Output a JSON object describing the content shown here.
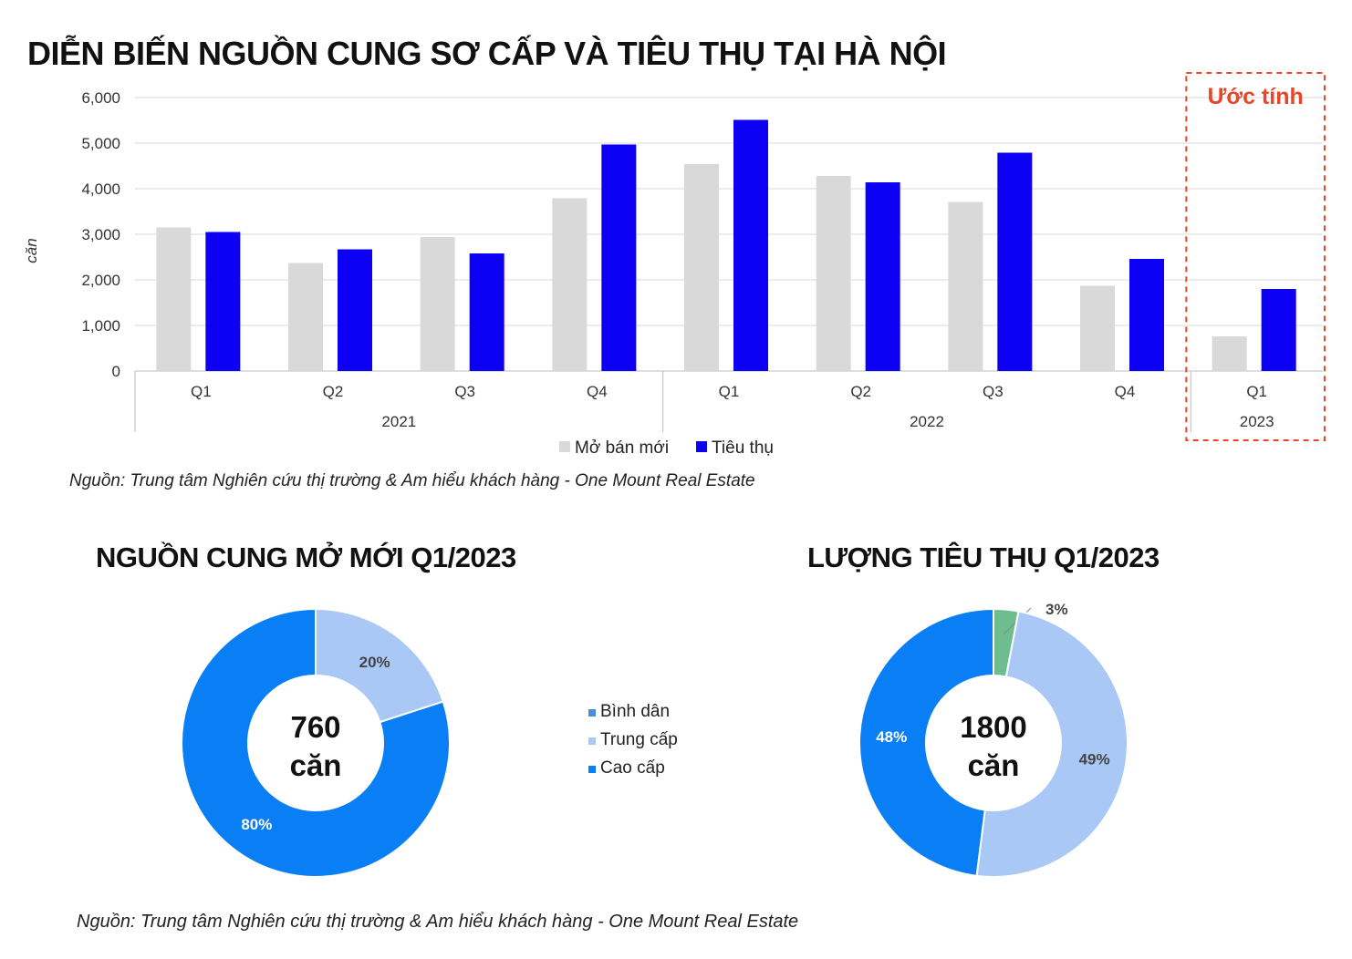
{
  "titles": {
    "main": "DIỄN BIẾN NGUỒN CUNG SƠ CẤP VÀ TIÊU THỤ TẠI HÀ NỘI",
    "donut1": "NGUỒN CUNG MỞ MỚI Q1/2023",
    "donut2": "LƯỢNG TIÊU THỤ Q1/2023"
  },
  "sources": {
    "top": "Nguồn: Trung tâm Nghiên cứu thị trường & Am hiểu khách hàng - One Mount Real Estate",
    "bottom": "Nguồn: Trung tâm Nghiên cứu thị trường & Am hiểu khách hàng - One Mount Real Estate"
  },
  "colors": {
    "grey": "#d9d9d9",
    "blue": "#0c00f5",
    "binh_dan": "#4a8fd6",
    "trung_cap": "#a9c8f6",
    "cao_cap": "#0a7ff5",
    "green": "#6dbd8e",
    "estimate": "#e8452a"
  },
  "chart_data": [
    {
      "type": "bar",
      "ylabel": "căn",
      "ylim": [
        0,
        6000
      ],
      "yticks": [
        "0",
        "1,000",
        "2,000",
        "3,000",
        "4,000",
        "5,000",
        "6,000"
      ],
      "grid": true,
      "categories": [
        "Q1",
        "Q2",
        "Q3",
        "Q4",
        "Q1",
        "Q2",
        "Q3",
        "Q4",
        "Q1"
      ],
      "groups": [
        {
          "label": "2021",
          "count": 4
        },
        {
          "label": "2022",
          "count": 4
        },
        {
          "label": "2023",
          "count": 1
        }
      ],
      "series": [
        {
          "name": "Mở bán mới",
          "color": "#d9d9d9",
          "values": [
            3150,
            2370,
            2940,
            3790,
            4540,
            4280,
            3710,
            1870,
            760
          ]
        },
        {
          "name": "Tiêu thụ",
          "color": "#0c00f5",
          "values": [
            3050,
            2670,
            2580,
            4970,
            5510,
            4140,
            4790,
            2460,
            1800
          ]
        }
      ],
      "annotation": "Ước tính",
      "legend_position": "bottom"
    },
    {
      "type": "pie",
      "center_value": "760",
      "center_unit": "căn",
      "slices": [
        {
          "name": "Trung cấp",
          "value": 20,
          "label": "20%",
          "color": "#a9c8f6"
        },
        {
          "name": "Cao cấp",
          "value": 80,
          "label": "80%",
          "color": "#0a7ff5"
        }
      ]
    },
    {
      "type": "pie",
      "center_value": "1800",
      "center_unit": "căn",
      "slices": [
        {
          "name": "",
          "value": 3,
          "label": "3%",
          "color": "#6dbd8e"
        },
        {
          "name": "Trung cấp",
          "value": 49,
          "label": "49%",
          "color": "#a9c8f6"
        },
        {
          "name": "Cao cấp",
          "value": 48,
          "label": "48%",
          "color": "#0a7ff5"
        }
      ]
    }
  ],
  "donut_legend": [
    {
      "name": "Bình dân",
      "color": "#4a8fd6"
    },
    {
      "name": "Trung cấp",
      "color": "#a9c8f6"
    },
    {
      "name": "Cao cấp",
      "color": "#0a7ff5"
    }
  ]
}
